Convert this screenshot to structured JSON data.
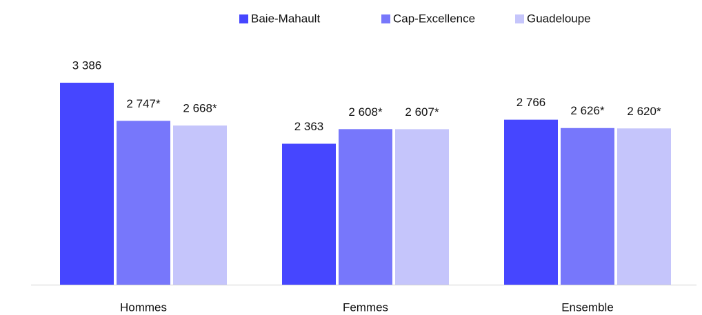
{
  "chart_data": {
    "type": "bar",
    "categories": [
      "Hommes",
      "Femmes",
      "Ensemble"
    ],
    "series": [
      {
        "name": "Baie-Mahault",
        "color": "#4646ff",
        "values": [
          3386,
          2363,
          2766
        ],
        "value_labels": [
          "3 386",
          "2 363",
          "2 766"
        ]
      },
      {
        "name": "Cap-Excellence",
        "color": "#7777fb",
        "values": [
          2747,
          2608,
          2626
        ],
        "value_labels": [
          "2 747*",
          "2 608*",
          "2 626*"
        ]
      },
      {
        "name": "Guadeloupe",
        "color": "#c5c5fb",
        "values": [
          2668,
          2607,
          2620
        ],
        "value_labels": [
          "2 668*",
          "2 607*",
          "2 620*"
        ]
      }
    ],
    "legend": "top"
  }
}
